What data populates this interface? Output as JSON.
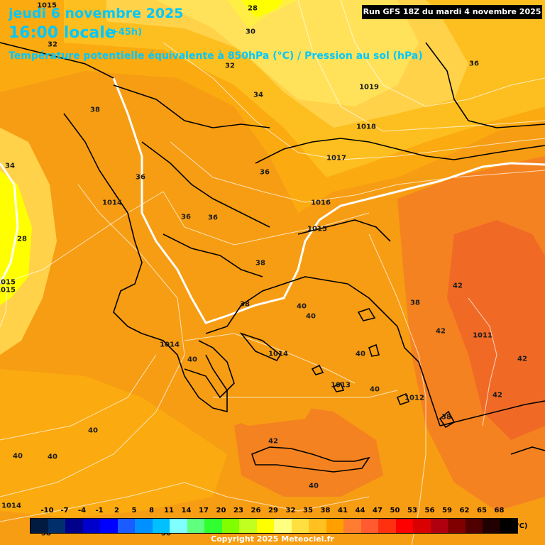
{
  "header": {
    "date": "jeudi 6 novembre 2025",
    "time": "16:00 locale",
    "lead": "(+45h)",
    "title": "Température potentielle équivalente à 850hPa (°C) / Pression au sol (hPa)",
    "run": "Run GFS 18Z du mardi 4 novembre 2025"
  },
  "colors": {
    "c28": "#ffff00",
    "c30": "#ffef44",
    "c32": "#ffe25a",
    "c34": "#ffd24a",
    "c36": "#fdbf1f",
    "c38": "#fbaa10",
    "c40": "#f79d13",
    "c42": "#f58220",
    "c44": "#f06a26",
    "isobar": "#ffffff",
    "coast": "#000000"
  },
  "temperature_labels": [
    {
      "text": "28",
      "id": "t1"
    },
    {
      "text": "30",
      "id": "t2"
    },
    {
      "text": "32",
      "id": "t3"
    },
    {
      "text": "32",
      "id": "t4"
    },
    {
      "text": "34",
      "id": "t5"
    },
    {
      "text": "36",
      "id": "t6"
    },
    {
      "text": "38",
      "id": "t7"
    },
    {
      "text": "34",
      "id": "t8"
    },
    {
      "text": "36",
      "id": "t9"
    },
    {
      "text": "36",
      "id": "t10"
    },
    {
      "text": "36",
      "id": "t11"
    },
    {
      "text": "36",
      "id": "t12"
    },
    {
      "text": "28",
      "id": "t13"
    },
    {
      "text": "38",
      "id": "t14"
    },
    {
      "text": "38",
      "id": "t15"
    },
    {
      "text": "40",
      "id": "t16"
    },
    {
      "text": "40",
      "id": "t17"
    },
    {
      "text": "40",
      "id": "t18"
    },
    {
      "text": "40",
      "id": "t19"
    },
    {
      "text": "40",
      "id": "t20"
    },
    {
      "text": "40",
      "id": "t21"
    },
    {
      "text": "40",
      "id": "t22"
    },
    {
      "text": "42",
      "id": "t23"
    },
    {
      "text": "42",
      "id": "t24"
    },
    {
      "text": "42",
      "id": "t25"
    },
    {
      "text": "42",
      "id": "t26"
    },
    {
      "text": "42",
      "id": "t27"
    },
    {
      "text": "38",
      "id": "t28"
    },
    {
      "text": "38",
      "id": "t29"
    },
    {
      "text": "40",
      "id": "t30"
    },
    {
      "text": "40",
      "id": "t31"
    },
    {
      "text": "38",
      "id": "t32"
    },
    {
      "text": "36",
      "id": "t33"
    }
  ],
  "pressure_labels": [
    {
      "text": "1015",
      "id": "p1"
    },
    {
      "text": "1019",
      "id": "p2"
    },
    {
      "text": "1018",
      "id": "p3"
    },
    {
      "text": "1017",
      "id": "p4"
    },
    {
      "text": "1016",
      "id": "p5"
    },
    {
      "text": "1015",
      "id": "p6"
    },
    {
      "text": "1014",
      "id": "p7"
    },
    {
      "text": "1014",
      "id": "p8"
    },
    {
      "text": "1014",
      "id": "p9"
    },
    {
      "text": "1013",
      "id": "p10"
    },
    {
      "text": "1012",
      "id": "p11"
    },
    {
      "text": "1011",
      "id": "p12"
    },
    {
      "text": "1015",
      "id": "p13"
    },
    {
      "text": "1014",
      "id": "p14"
    },
    {
      "text": "1015",
      "id": "p15"
    }
  ],
  "scale": {
    "unit": "(°C)",
    "ticks": [
      "-10",
      "-7",
      "-4",
      "-1",
      "2",
      "5",
      "8",
      "11",
      "14",
      "17",
      "20",
      "23",
      "26",
      "29",
      "32",
      "35",
      "38",
      "41",
      "44",
      "47",
      "50",
      "53",
      "56",
      "59",
      "62",
      "65",
      "68"
    ],
    "colors": [
      "#001a40",
      "#002f6b",
      "#00008b",
      "#0000cd",
      "#0000ff",
      "#1a5cff",
      "#0090ff",
      "#00c0ff",
      "#80ffff",
      "#60ff80",
      "#30ff30",
      "#80ff00",
      "#c0ff20",
      "#ffff00",
      "#ffff80",
      "#ffe040",
      "#ffc020",
      "#ffa000",
      "#ff7c30",
      "#ff5a30",
      "#ff3010",
      "#ff0000",
      "#d80000",
      "#b00010",
      "#800000",
      "#500000",
      "#200000",
      "#000000"
    ]
  },
  "copyright": "Copyright 2025 Meteociel.fr"
}
